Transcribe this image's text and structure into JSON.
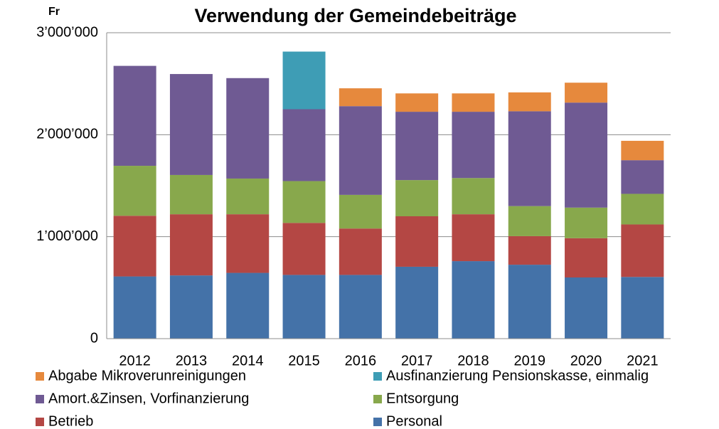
{
  "chart_data": {
    "type": "stacked_bar",
    "title": "Verwendung der Gemeindebeiträge",
    "y_label": "Fr",
    "categories": [
      "2012",
      "2013",
      "2014",
      "2015",
      "2016",
      "2017",
      "2018",
      "2019",
      "2020",
      "2021"
    ],
    "ylim": [
      0,
      3000000
    ],
    "yticks": [
      0,
      {
        "value": 1000000,
        "label": "1’000’000"
      },
      {
        "value": 2000000,
        "label": "2’000’000"
      },
      {
        "value": 3000000,
        "label": "3’000’000"
      }
    ],
    "grid": true,
    "legend": "bottom",
    "series": [
      {
        "name": "Abgabe Mikroverunreinigungen",
        "color": "#e6893d",
        "values": [
          null,
          null,
          null,
          null,
          175000,
          180000,
          180000,
          185000,
          195000,
          190000
        ]
      },
      {
        "name": "Ausfinanzierung Pensionskasse, einmalig",
        "color": "#3e9db5",
        "values": [
          null,
          null,
          null,
          565000,
          null,
          null,
          null,
          null,
          null,
          null
        ]
      },
      {
        "name": "Amort.&Zinsen, Vorfinanzierung",
        "color": "#6f5a93",
        "values": [
          980000,
          990000,
          985000,
          705000,
          870000,
          670000,
          650000,
          930000,
          1030000,
          330000
        ]
      },
      {
        "name": "Entsorgung",
        "color": "#88a84c",
        "values": [
          490000,
          385000,
          350000,
          410000,
          330000,
          355000,
          355000,
          295000,
          300000,
          300000
        ]
      },
      {
        "name": "Betrieb",
        "color": "#b44744",
        "values": [
          595000,
          600000,
          575000,
          510000,
          455000,
          495000,
          460000,
          280000,
          385000,
          515000
        ]
      },
      {
        "name": "Personal",
        "color": "#4472a8",
        "values": [
          610000,
          620000,
          645000,
          625000,
          625000,
          705000,
          760000,
          725000,
          600000,
          605000
        ]
      }
    ]
  }
}
